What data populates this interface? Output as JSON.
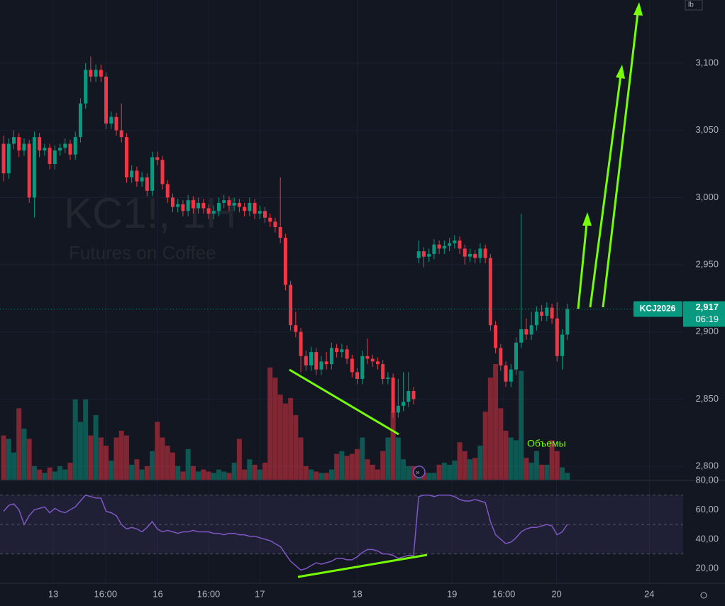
{
  "chart_data": {
    "type": "candlestick",
    "watermark": "KC1!, 1H",
    "subtitle": "Futures on Coffee",
    "unit_label": "lb",
    "up_color": "#089981",
    "down_color": "#f23645",
    "grid": true,
    "ylim": [
      2790,
      3147
    ],
    "yticks": [
      {
        "value": 2800,
        "label": "2,800"
      },
      {
        "value": 2850,
        "label": "2,850"
      },
      {
        "value": 2900,
        "label": "2,900"
      },
      {
        "value": 2950,
        "label": "2,950"
      },
      {
        "value": 3000,
        "label": "3,000"
      },
      {
        "value": 3050,
        "label": "3,050"
      },
      {
        "value": 3100,
        "label": "3,100"
      }
    ],
    "xlim": [
      -0.7,
      132.6
    ],
    "xticks": [
      {
        "value": 9.7,
        "label": "13"
      },
      {
        "value": 19.9,
        "label": "16:00"
      },
      {
        "value": 30.1,
        "label": "16"
      },
      {
        "value": 40,
        "label": "16:00"
      },
      {
        "value": 50,
        "label": "17"
      },
      {
        "value": 69,
        "label": "18"
      },
      {
        "value": 87.5,
        "label": "19"
      },
      {
        "value": 97.6,
        "label": "16:00"
      },
      {
        "value": 107.9,
        "label": "20"
      },
      {
        "value": 126,
        "label": "24"
      }
    ],
    "last_price": {
      "symbol": "KCJ2026",
      "value": 2917,
      "label": "2,917",
      "countdown": "06:19"
    },
    "volume_annotation": "Объемы",
    "ohlc": [
      [
        3040,
        3046,
        3012,
        3018
      ],
      [
        3018,
        3044,
        3014,
        3040
      ],
      [
        3040,
        3050,
        3036,
        3045
      ],
      [
        3045,
        3048,
        3030,
        3035
      ],
      [
        3035,
        3044,
        3031,
        3040
      ],
      [
        3040,
        3043,
        2996,
        3000
      ],
      [
        3000,
        3049,
        2985,
        3045
      ],
      [
        3045,
        3048,
        3030,
        3035
      ],
      [
        3035,
        3040,
        3031,
        3037
      ],
      [
        3037,
        3040,
        3021,
        3025
      ],
      [
        3025,
        3039,
        3021,
        3035
      ],
      [
        3035,
        3040,
        3031,
        3037
      ],
      [
        3037,
        3044,
        3033,
        3040
      ],
      [
        3040,
        3043,
        3028,
        3032
      ],
      [
        3032,
        3049,
        3028,
        3045
      ],
      [
        3045,
        3074,
        3041,
        3070
      ],
      [
        3070,
        3100,
        3066,
        3095
      ],
      [
        3095,
        3105,
        3086,
        3090
      ],
      [
        3090,
        3099,
        3086,
        3095
      ],
      [
        3095,
        3099,
        3086,
        3090
      ],
      [
        3090,
        3093,
        3051,
        3055
      ],
      [
        3055,
        3064,
        3051,
        3060
      ],
      [
        3060,
        3063,
        3046,
        3050
      ],
      [
        3050,
        3070,
        3041,
        3045
      ],
      [
        3045,
        3048,
        3011,
        3015
      ],
      [
        3015,
        3024,
        3011,
        3020
      ],
      [
        3020,
        3023,
        3008,
        3012
      ],
      [
        3012,
        3019,
        3008,
        3015
      ],
      [
        3015,
        3018,
        3001,
        3005
      ],
      [
        3005,
        3034,
        3001,
        3030
      ],
      [
        3030,
        3034,
        3024,
        3028
      ],
      [
        3028,
        3031,
        3006,
        3010
      ],
      [
        3010,
        3013,
        2996,
        3000
      ],
      [
        3000,
        3003,
        2989,
        2993
      ],
      [
        2993,
        2999,
        2989,
        2995
      ],
      [
        2995,
        2998,
        2986,
        2990
      ],
      [
        2990,
        3002,
        2986,
        2998
      ],
      [
        2998,
        3001,
        2988,
        2992
      ],
      [
        2992,
        3000,
        2988,
        2996
      ],
      [
        2996,
        2999,
        2988,
        2992
      ],
      [
        2992,
        2995,
        2984,
        2988
      ],
      [
        2988,
        2994,
        2984,
        2990
      ],
      [
        2990,
        3000,
        2986,
        2996
      ],
      [
        2996,
        3002,
        2992,
        2998
      ],
      [
        2998,
        3001,
        2990,
        2994
      ],
      [
        2994,
        3000,
        2990,
        2996
      ],
      [
        2996,
        2999,
        2989,
        2993
      ],
      [
        2993,
        2996,
        2986,
        2990
      ],
      [
        2990,
        3000,
        2986,
        2996
      ],
      [
        2996,
        2999,
        2984,
        2988
      ],
      [
        2988,
        2994,
        2984,
        2990
      ],
      [
        2990,
        2993,
        2981,
        2985
      ],
      [
        2985,
        2988,
        2978,
        2982
      ],
      [
        2982,
        2985,
        2974,
        2978
      ],
      [
        2978,
        3015,
        2966,
        2970
      ],
      [
        2970,
        2973,
        2931,
        2935
      ],
      [
        2935,
        2938,
        2901,
        2905
      ],
      [
        2905,
        2915,
        2896,
        2900
      ],
      [
        2900,
        2903,
        2870,
        2882
      ],
      [
        2882,
        2886,
        2871,
        2875
      ],
      [
        2875,
        2889,
        2871,
        2885
      ],
      [
        2885,
        2888,
        2868,
        2872
      ],
      [
        2872,
        2882,
        2868,
        2878
      ],
      [
        2878,
        2885,
        2872,
        2876
      ],
      [
        2876,
        2892,
        2872,
        2888
      ],
      [
        2888,
        2891,
        2881,
        2885
      ],
      [
        2885,
        2891,
        2881,
        2887
      ],
      [
        2887,
        2890,
        2876,
        2880
      ],
      [
        2880,
        2883,
        2866,
        2870
      ],
      [
        2870,
        2873,
        2861,
        2865
      ],
      [
        2865,
        2886,
        2861,
        2882
      ],
      [
        2882,
        2895,
        2876,
        2880
      ],
      [
        2880,
        2883,
        2874,
        2878
      ],
      [
        2878,
        2881,
        2872,
        2876
      ],
      [
        2876,
        2879,
        2861,
        2865
      ],
      [
        2865,
        2870,
        2861,
        2866
      ],
      [
        2866,
        2869,
        2836,
        2840
      ],
      [
        2840,
        2865,
        2836,
        2845
      ],
      [
        2845,
        2870,
        2841,
        2848
      ],
      [
        2848,
        2870,
        2844,
        2856
      ],
      [
        2856,
        2859,
        2846,
        2850
      ],
      [
        2955,
        2968,
        2951,
        2960
      ],
      [
        2960,
        2963,
        2948,
        2956
      ],
      [
        2956,
        2962,
        2952,
        2958
      ],
      [
        2958,
        2969,
        2954,
        2965
      ],
      [
        2965,
        2968,
        2958,
        2962
      ],
      [
        2962,
        2968,
        2958,
        2964
      ],
      [
        2964,
        2970,
        2960,
        2966
      ],
      [
        2966,
        2972,
        2962,
        2968
      ],
      [
        2968,
        2971,
        2958,
        2962
      ],
      [
        2962,
        2965,
        2950,
        2956
      ],
      [
        2956,
        2962,
        2952,
        2958
      ],
      [
        2958,
        2961,
        2951,
        2955
      ],
      [
        2955,
        2966,
        2951,
        2962
      ],
      [
        2962,
        2965,
        2951,
        2955
      ],
      [
        2955,
        2958,
        2901,
        2905
      ],
      [
        2905,
        2908,
        2884,
        2888
      ],
      [
        2888,
        2891,
        2871,
        2875
      ],
      [
        2875,
        2878,
        2859,
        2863
      ],
      [
        2863,
        2876,
        2859,
        2872
      ],
      [
        2872,
        2896,
        2868,
        2892
      ],
      [
        2892,
        2988,
        2888,
        2902
      ],
      [
        2902,
        2910,
        2894,
        2898
      ],
      [
        2898,
        2915,
        2894,
        2905
      ],
      [
        2905,
        2919,
        2901,
        2915
      ],
      [
        2915,
        2920,
        2908,
        2912
      ],
      [
        2912,
        2922,
        2908,
        2918
      ],
      [
        2918,
        2921,
        2906,
        2910
      ],
      [
        2910,
        2922,
        2878,
        2882
      ],
      [
        2882,
        2902,
        2872,
        2898
      ],
      [
        2898,
        2921,
        2894,
        2917
      ]
    ],
    "volume": [
      65,
      60,
      40,
      105,
      75,
      60,
      20,
      15,
      10,
      18,
      12,
      20,
      15,
      25,
      118,
      85,
      118,
      65,
      95,
      62,
      50,
      28,
      62,
      72,
      65,
      22,
      30,
      15,
      20,
      42,
      85,
      62,
      50,
      40,
      20,
      12,
      45,
      20,
      12,
      15,
      12,
      10,
      15,
      12,
      10,
      25,
      60,
      15,
      30,
      22,
      15,
      25,
      165,
      150,
      125,
      112,
      120,
      95,
      62,
      20,
      15,
      12,
      10,
      10,
      15,
      38,
      42,
      35,
      38,
      45,
      62,
      30,
      22,
      15,
      42,
      62,
      100,
      62,
      30,
      20,
      20,
      10,
      10,
      10,
      10,
      22,
      25,
      22,
      28,
      55,
      42,
      30,
      32,
      50,
      100,
      150,
      170,
      105,
      72,
      62,
      58,
      160,
      32,
      25,
      42,
      22,
      22,
      58,
      42,
      18,
      10
    ],
    "rsi": {
      "type": "line",
      "color": "#7e57c2",
      "ylim": [
        10,
        80
      ],
      "bands": [
        30,
        50,
        70
      ],
      "yticks": [
        {
          "value": 20,
          "label": "20,00"
        },
        {
          "value": 40,
          "label": "40,00"
        },
        {
          "value": 60,
          "label": "60,00"
        },
        {
          "value": 80,
          "label": "80,00"
        }
      ],
      "values": [
        59,
        63,
        64,
        60,
        50,
        56,
        60,
        61,
        62,
        58,
        61,
        59,
        58,
        60,
        62,
        66,
        70,
        69,
        68,
        68,
        59,
        58,
        56,
        50,
        47,
        48,
        47,
        45,
        48,
        52,
        47,
        45,
        46,
        45,
        44,
        45,
        45,
        46,
        45,
        45,
        45,
        44,
        44,
        43,
        44,
        44,
        43,
        43,
        42,
        42,
        41,
        40,
        39,
        37,
        35,
        30,
        25,
        22,
        19,
        20,
        22,
        24,
        23,
        24,
        25,
        27,
        27,
        26,
        26,
        28,
        31,
        33,
        33,
        32,
        30,
        30,
        29,
        27,
        28,
        29,
        29,
        69,
        70,
        70,
        69,
        70,
        70,
        70,
        69,
        67,
        66,
        66,
        67,
        66,
        65,
        52,
        43,
        40,
        37,
        38,
        41,
        45,
        47,
        48,
        48,
        49,
        50,
        49,
        43,
        45,
        50
      ]
    }
  }
}
